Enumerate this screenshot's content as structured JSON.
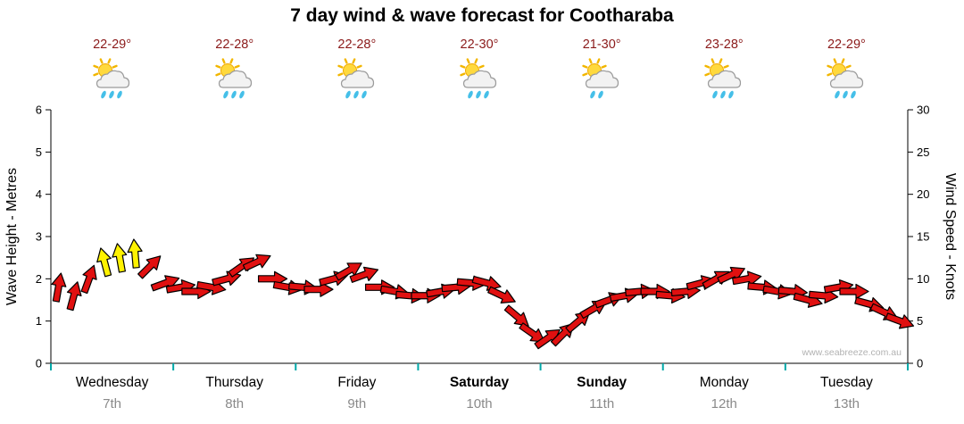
{
  "watermark": "www.seabreeze.com.au",
  "colors": {
    "temp_text": "#8B1A1A",
    "arrow_red": "#E01010",
    "arrow_yellow": "#FFF200",
    "arrow_outline": "#000000",
    "tick_teal": "#00A8A8",
    "date_gray": "#8a8a8a",
    "axis_black": "#000000",
    "watermark_gray": "#b2b2b2"
  },
  "chart_data": {
    "type": "wind-arrows",
    "title": "7 day wind & wave forecast for Cootharaba",
    "days": [
      {
        "name": "Wednesday",
        "date": "7th",
        "temp": "22-29°",
        "icon": "sun-cloud-showers",
        "rain_drops": 3,
        "weekend": false
      },
      {
        "name": "Thursday",
        "date": "8th",
        "temp": "22-28°",
        "icon": "sun-cloud-showers",
        "rain_drops": 3,
        "weekend": false
      },
      {
        "name": "Friday",
        "date": "9th",
        "temp": "22-28°",
        "icon": "sun-cloud-showers",
        "rain_drops": 3,
        "weekend": false
      },
      {
        "name": "Saturday",
        "date": "10th",
        "temp": "22-30°",
        "icon": "sun-cloud-showers",
        "rain_drops": 3,
        "weekend": true
      },
      {
        "name": "Sunday",
        "date": "11th",
        "temp": "21-30°",
        "icon": "sun-cloud-light-showers",
        "rain_drops": 2,
        "weekend": true
      },
      {
        "name": "Monday",
        "date": "12th",
        "temp": "23-28°",
        "icon": "sun-cloud-showers",
        "rain_drops": 3,
        "weekend": false
      },
      {
        "name": "Tuesday",
        "date": "13th",
        "temp": "22-29°",
        "icon": "sun-cloud-showers",
        "rain_drops": 3,
        "weekend": false
      }
    ],
    "y_left": {
      "label": "Wave Height - Metres",
      "min": 0,
      "max": 6,
      "ticks": [
        0,
        1,
        2,
        3,
        4,
        5,
        6
      ]
    },
    "y_right": {
      "label": "Wind Speed - Knots",
      "min": 0,
      "max": 30,
      "ticks": [
        0,
        5,
        10,
        15,
        20,
        25,
        30
      ]
    },
    "x_axis": {
      "points_per_day": 8,
      "interval_hours": 3,
      "grid": "off",
      "day_boundary_ticks": "teal"
    },
    "wind": {
      "speeds_knots": [
        9,
        8,
        10,
        12,
        12.5,
        13,
        11.5,
        9.5,
        9,
        8.5,
        9,
        10,
        11.5,
        12,
        10,
        9,
        9,
        8.75,
        10,
        11,
        10.5,
        9,
        8.5,
        8,
        8,
        8.5,
        9,
        9.5,
        9.5,
        8,
        5.5,
        3.5,
        3,
        3.5,
        5,
        6.5,
        7.5,
        8,
        8.5,
        8.5,
        8,
        8.5,
        9.5,
        10,
        10.5,
        10,
        9,
        8.5,
        8.5,
        7.5,
        8,
        9,
        8.5,
        7,
        6,
        5
      ],
      "directions_deg": [
        -80,
        -75,
        -70,
        -105,
        -100,
        -95,
        -45,
        -20,
        -10,
        0,
        10,
        -15,
        -35,
        -25,
        0,
        10,
        5,
        0,
        -15,
        -30,
        -20,
        0,
        10,
        5,
        0,
        -10,
        -5,
        5,
        15,
        25,
        40,
        35,
        -35,
        -45,
        -40,
        -30,
        -20,
        -10,
        -5,
        0,
        5,
        -5,
        -15,
        -30,
        -25,
        -10,
        5,
        10,
        5,
        15,
        5,
        -10,
        0,
        15,
        25,
        20
      ],
      "yellow_indices": [
        3,
        4,
        5
      ]
    }
  }
}
